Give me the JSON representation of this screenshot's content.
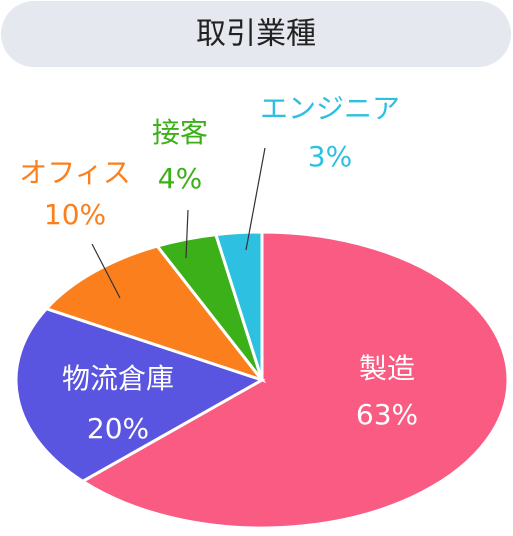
{
  "chart_data": {
    "type": "pie",
    "title": "取引業種",
    "categories": [
      "製造",
      "物流倉庫",
      "オフィス",
      "接客",
      "エンジニア"
    ],
    "values": [
      63,
      20,
      10,
      4,
      3
    ],
    "value_labels": [
      "63%",
      "20%",
      "10%",
      "4%",
      "3%"
    ],
    "colors": [
      "#f95b82",
      "#5a55e0",
      "#fb7f1c",
      "#3cb019",
      "#2ec0e0"
    ]
  }
}
